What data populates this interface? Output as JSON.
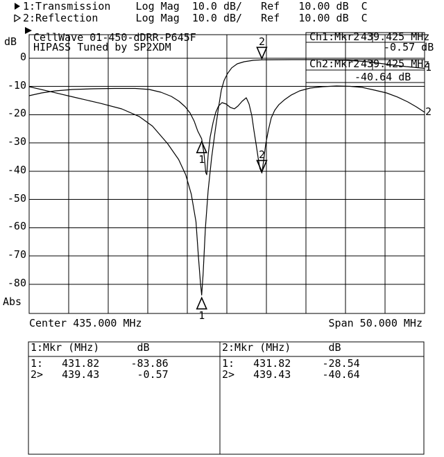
{
  "colors": {
    "ink": "#000000",
    "paper": "#ffffff"
  },
  "header": {
    "lines": [
      {
        "icon": "filled-right-triangle",
        "text": "1:Transmission    Log Mag  10.0 dB/   Ref   10.00 dB  C"
      },
      {
        "icon": "hollow-right-triangle",
        "text": "2:Reflection      Log Mag  10.0 dB/   Ref   10.00 dB  C"
      }
    ]
  },
  "readouts": [
    {
      "channel": "Ch1:Mkr2",
      "freq": "439.425 MHz",
      "value": "-0.57 dB"
    },
    {
      "channel": "Ch2:Mkr2",
      "freq": "439.425 MHz",
      "value": "-40.64 dB"
    }
  ],
  "marker_table": {
    "sections": [
      {
        "header_label": "1:Mkr (MHz)",
        "header_unit": "dB",
        "rows": [
          {
            "sel": "1:",
            "freq": "431.82",
            "db": "-83.86"
          },
          {
            "sel": "2>",
            "freq": "439.43",
            "db": "-0.57"
          }
        ]
      },
      {
        "header_label": "2:Mkr (MHz)",
        "header_unit": "dB",
        "rows": [
          {
            "sel": "1:",
            "freq": "431.82",
            "db": "-28.54"
          },
          {
            "sel": "2>",
            "freq": "439.43",
            "db": "-40.64"
          }
        ]
      }
    ]
  },
  "chart_data": {
    "type": "line",
    "title": "CellWave 01-450-dDRR-P645F",
    "subtitle": "HIPASS Tuned by SP2XDM",
    "x_axis": {
      "center_mhz": 435.0,
      "span_mhz": 50.0,
      "min_mhz": 410.0,
      "max_mhz": 460.0,
      "divisions": 10,
      "center_label": "Center 435.000 MHz",
      "span_label": "Span 50.000 MHz"
    },
    "y_axis": {
      "unit": "dB",
      "bottom_label": "Abs",
      "scale_db_per_div": 10.0,
      "ref_db": 10.0,
      "ticks": [
        0,
        -10,
        -20,
        -30,
        -40,
        -50,
        -60,
        -70,
        -80
      ],
      "grid": true
    },
    "series": [
      {
        "name": "Transmission",
        "trace_number": "1",
        "points": [
          [
            410.0,
            -10.06
          ],
          [
            412.9,
            -11.95
          ],
          [
            416.0,
            -14.0
          ],
          [
            419.0,
            -15.95
          ],
          [
            421.7,
            -17.92
          ],
          [
            423.9,
            -20.6
          ],
          [
            425.6,
            -24.05
          ],
          [
            427.5,
            -30.2
          ],
          [
            428.9,
            -35.85
          ],
          [
            429.8,
            -41.25
          ],
          [
            430.5,
            -48.1
          ],
          [
            431.1,
            -57.9
          ],
          [
            431.4,
            -70.2
          ],
          [
            431.66,
            -79.5
          ],
          [
            431.82,
            -83.86
          ],
          [
            432.0,
            -76.3
          ],
          [
            432.28,
            -60.4
          ],
          [
            432.63,
            -46.9
          ],
          [
            433.07,
            -35.3
          ],
          [
            433.51,
            -26.0
          ],
          [
            433.95,
            -17.4
          ],
          [
            434.3,
            -11.3
          ],
          [
            434.65,
            -7.85
          ],
          [
            435.09,
            -5.4
          ],
          [
            435.61,
            -3.4
          ],
          [
            436.32,
            -1.96
          ],
          [
            437.19,
            -1.23
          ],
          [
            438.33,
            -0.74
          ],
          [
            439.43,
            -0.57
          ],
          [
            443.16,
            -0.49
          ],
          [
            446.67,
            -0.49
          ],
          [
            450.18,
            -0.74
          ],
          [
            452.81,
            -1.23
          ],
          [
            455.44,
            -2.21
          ],
          [
            457.63,
            -2.95
          ],
          [
            460.0,
            -3.56
          ]
        ]
      },
      {
        "name": "Reflection",
        "trace_number": "2",
        "points": [
          [
            410.0,
            -13.25
          ],
          [
            411.58,
            -12.27
          ],
          [
            413.33,
            -11.54
          ],
          [
            415.53,
            -11.05
          ],
          [
            418.16,
            -10.8
          ],
          [
            420.79,
            -10.68
          ],
          [
            423.42,
            -10.68
          ],
          [
            425.18,
            -11.05
          ],
          [
            426.67,
            -12.03
          ],
          [
            427.98,
            -13.5
          ],
          [
            428.95,
            -15.22
          ],
          [
            429.74,
            -17.18
          ],
          [
            430.35,
            -19.39
          ],
          [
            430.88,
            -22.33
          ],
          [
            431.32,
            -25.77
          ],
          [
            431.82,
            -28.54
          ],
          [
            432.11,
            -33.87
          ],
          [
            432.33,
            -40.5
          ],
          [
            432.46,
            -41.23
          ],
          [
            432.63,
            -34.36
          ],
          [
            432.89,
            -27.98
          ],
          [
            433.25,
            -22.82
          ],
          [
            433.6,
            -19.14
          ],
          [
            433.95,
            -16.93
          ],
          [
            434.39,
            -15.71
          ],
          [
            434.91,
            -16.2
          ],
          [
            435.44,
            -17.42
          ],
          [
            435.96,
            -17.91
          ],
          [
            436.4,
            -16.93
          ],
          [
            436.93,
            -15.22
          ],
          [
            437.46,
            -13.99
          ],
          [
            437.81,
            -16.2
          ],
          [
            438.16,
            -20.37
          ],
          [
            438.42,
            -25.52
          ],
          [
            438.68,
            -30.2
          ],
          [
            438.95,
            -35.11
          ],
          [
            439.17,
            -38.96
          ],
          [
            439.43,
            -40.64
          ],
          [
            439.65,
            -36.33
          ],
          [
            439.91,
            -30.44
          ],
          [
            440.26,
            -25.28
          ],
          [
            440.61,
            -21.11
          ],
          [
            441.05,
            -18.41
          ],
          [
            441.58,
            -16.44
          ],
          [
            442.28,
            -14.72
          ],
          [
            443.16,
            -13.0
          ],
          [
            444.21,
            -11.54
          ],
          [
            445.53,
            -10.55
          ],
          [
            447.11,
            -10.06
          ],
          [
            448.86,
            -9.82
          ],
          [
            450.61,
            -9.94
          ],
          [
            452.11,
            -10.31
          ],
          [
            453.68,
            -11.29
          ],
          [
            455.18,
            -12.27
          ],
          [
            456.58,
            -13.74
          ],
          [
            457.89,
            -15.46
          ],
          [
            458.95,
            -17.18
          ],
          [
            460.0,
            -19.14
          ]
        ]
      }
    ],
    "markers": [
      {
        "label": "1",
        "trace": 1,
        "freq_mhz": 431.82,
        "db": -83.86,
        "pointing": "up",
        "label_side": "below"
      },
      {
        "label": "2",
        "trace": 1,
        "freq_mhz": 439.425,
        "db": -0.57,
        "pointing": "down",
        "label_side": "above"
      },
      {
        "label": "1",
        "trace": 2,
        "freq_mhz": 431.82,
        "db": -28.54,
        "pointing": "up",
        "label_side": "below"
      },
      {
        "label": "2",
        "trace": 2,
        "freq_mhz": 439.425,
        "db": -40.64,
        "pointing": "down",
        "label_side": "above"
      }
    ]
  }
}
